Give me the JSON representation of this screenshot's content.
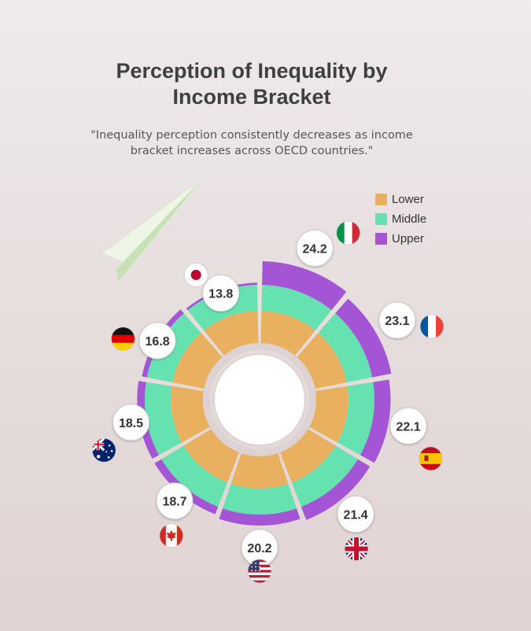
{
  "header": {
    "title_lines": [
      "Perception of Inequality by",
      "Income Bracket"
    ],
    "subtitle_lines": [
      "\"Inequality perception consistently decreases as income",
      "bracket increases across OECD countries.\""
    ]
  },
  "colors": {
    "lower": "#e9b05f",
    "middle": "#66e2b0",
    "upper": "#a455d6",
    "gap": "#ddd2d4",
    "label_bg": "#ffffff"
  },
  "chart_data": {
    "type": "radial-stacked-bar",
    "title": "Perception of Inequality by Income Bracket",
    "series_names": [
      "Lower",
      "Middle",
      "Upper"
    ],
    "legend": {
      "position": "top-right",
      "entries": [
        "Lower",
        "Middle",
        "Upper"
      ]
    },
    "countries": [
      {
        "flag": "italy-flag-icon",
        "total": 24.2
      },
      {
        "flag": "france-flag-icon",
        "total": 23.1
      },
      {
        "flag": "spain-flag-icon",
        "total": 22.1
      },
      {
        "flag": "uk-flag-icon",
        "total": 21.4
      },
      {
        "flag": "usa-flag-icon",
        "total": 20.2
      },
      {
        "flag": "canada-flag-icon",
        "total": 18.7
      },
      {
        "flag": "australia-flag-icon",
        "total": 18.5
      },
      {
        "flag": "germany-flag-icon",
        "total": 16.8
      },
      {
        "flag": "japan-flag-icon",
        "total": 13.8
      }
    ]
  }
}
